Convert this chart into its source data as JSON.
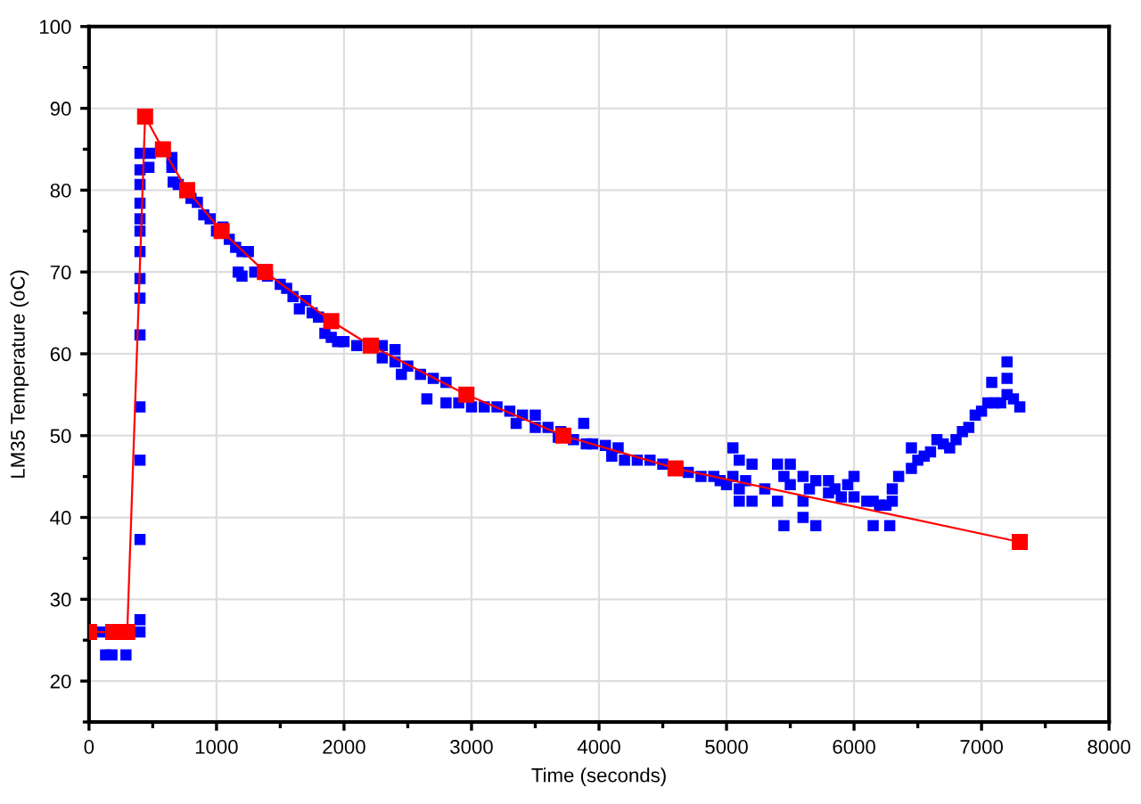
{
  "chart_data": {
    "type": "scatter",
    "xlabel": "Time (seconds)",
    "ylabel": "LM35 Temperature (oC)",
    "xlim": [
      0,
      8000
    ],
    "xticks": [
      0,
      1000,
      2000,
      3000,
      4000,
      5000,
      6000,
      7000,
      8000
    ],
    "ylim": [
      15,
      100
    ],
    "yticks": [
      20,
      30,
      40,
      50,
      60,
      70,
      80,
      90,
      100
    ],
    "grid": true,
    "legend": false,
    "marker": "square",
    "series": [
      {
        "color": "#0000ff",
        "x": [
          100,
          400,
          130,
          180,
          290,
          400,
          400,
          400,
          400,
          400,
          400,
          400,
          400,
          400,
          400,
          400,
          400,
          400,
          400,
          480,
          470,
          650,
          650,
          660,
          700,
          800,
          850,
          900,
          950,
          1000,
          1050,
          1100,
          1150,
          1200,
          1250,
          1170,
          1200,
          1300,
          1400,
          1500,
          1550,
          1600,
          1700,
          1650,
          1750,
          1800,
          1850,
          1900,
          1950,
          2000,
          2100,
          2300,
          2400,
          2300,
          2400,
          2500,
          2450,
          2600,
          2700,
          2800,
          2650,
          2800,
          2900,
          3000,
          3100,
          3200,
          3300,
          3400,
          3500,
          3350,
          3500,
          3600,
          3700,
          3680,
          3800,
          3900,
          3880,
          3950,
          4050,
          4150,
          4100,
          4200,
          4300,
          4400,
          4500,
          4700,
          4800,
          4900,
          4950,
          5000,
          5050,
          5100,
          5050,
          5100,
          5100,
          5200,
          5200,
          5150,
          5300,
          5400,
          5450,
          5500,
          5400,
          5450,
          5500,
          5600,
          5600,
          5600,
          5700,
          5650,
          5700,
          5800,
          5800,
          5850,
          5900,
          5950,
          6000,
          6000,
          6100,
          6150,
          6200,
          6250,
          6300,
          6150,
          6280,
          6300,
          6350,
          6450,
          6450,
          6500,
          6550,
          6600,
          6650,
          6700,
          6750,
          6800,
          6850,
          6900,
          6950,
          7000,
          7050,
          7100,
          7150,
          7200,
          7250,
          7300,
          7080,
          7200,
          7200
        ],
        "values": [
          26,
          26,
          23.2,
          23.2,
          23.2,
          27.5,
          37.3,
          47,
          53.5,
          62.3,
          66.8,
          69.2,
          72.5,
          75,
          76.5,
          78.4,
          80.7,
          82.5,
          84.5,
          84.5,
          82.8,
          82.8,
          84,
          81,
          80.7,
          79,
          78.5,
          77,
          76.5,
          75,
          75.5,
          74,
          73,
          72.5,
          72.5,
          70,
          69.5,
          70,
          69.5,
          68.5,
          68,
          67,
          66.5,
          65.5,
          65,
          64.5,
          62.5,
          62,
          61.5,
          61.5,
          61,
          61,
          60.5,
          59.5,
          59,
          58.5,
          57.5,
          57.5,
          57,
          56.5,
          54.5,
          54,
          54,
          53.5,
          53.5,
          53.5,
          53,
          52.5,
          52.5,
          51.5,
          51,
          51,
          50.5,
          49.8,
          49.5,
          49,
          51.5,
          49,
          48.8,
          48.5,
          47.5,
          47,
          47,
          47,
          46.5,
          45.5,
          45,
          45,
          44.5,
          44,
          48.5,
          47,
          45,
          43.5,
          42,
          42,
          46.5,
          44.5,
          43.5,
          46.5,
          45,
          44,
          42,
          39,
          46.5,
          45,
          42,
          40,
          39,
          43.5,
          44.5,
          44.5,
          43,
          43.5,
          42.5,
          44,
          45,
          42.5,
          42,
          42,
          41.5,
          41.5,
          42,
          39,
          39,
          43.5,
          45,
          46,
          48.5,
          47,
          47.5,
          48,
          49.5,
          49,
          48.5,
          49.5,
          50.5,
          51,
          52.5,
          53,
          54,
          54,
          54,
          55,
          54.5,
          53.5,
          56.5,
          57,
          59
        ]
      },
      {
        "type": "line",
        "color": "#ff0000",
        "x": [
          0,
          190,
          300,
          440,
          580,
          770,
          1040,
          1380,
          1900,
          2210,
          2960,
          3720,
          4600,
          7300
        ],
        "values": [
          26,
          26,
          26,
          89,
          85,
          80,
          75,
          70,
          64,
          61,
          55,
          50,
          46,
          37
        ]
      }
    ]
  }
}
